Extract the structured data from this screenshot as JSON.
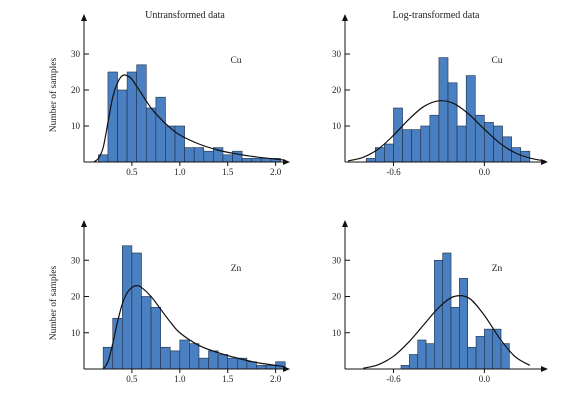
{
  "figure": {
    "column_titles": [
      "Untransformed data",
      "Log-transformed data"
    ],
    "ylabel": "Number of samples"
  },
  "chart_data": [
    {
      "id": "cu-raw",
      "type": "bar",
      "metal": "Cu",
      "xlim": [
        0.0,
        2.15
      ],
      "ylim": [
        0,
        40
      ],
      "xticks": [
        0.5,
        1.0,
        1.5,
        2.0
      ],
      "xtick_labels": [
        "0.5",
        "1.0",
        "1.5",
        "2.0"
      ],
      "yticks": [
        10,
        20,
        30
      ],
      "ytick_labels": [
        "10",
        "20",
        "30"
      ],
      "bin_start": 0.15,
      "bin_width": 0.1,
      "values": [
        2,
        25,
        20,
        25,
        27,
        15,
        18,
        10,
        10,
        4,
        4,
        3,
        4,
        2,
        3,
        1,
        1,
        1,
        1
      ],
      "curve_x": [
        0.1,
        0.15,
        0.2,
        0.25,
        0.3,
        0.35,
        0.4,
        0.45,
        0.5,
        0.55,
        0.6,
        0.7,
        0.8,
        0.9,
        1.0,
        1.2,
        1.4,
        1.6,
        1.8,
        2.0,
        2.1
      ],
      "curve_y": [
        0,
        1,
        4,
        11,
        18,
        22,
        24,
        24,
        23,
        21,
        19,
        15,
        12,
        9.5,
        7.5,
        5,
        3.3,
        2.2,
        1.4,
        0.8,
        0.5
      ]
    },
    {
      "id": "cu-log",
      "type": "bar",
      "metal": "Cu",
      "xlim": [
        -0.92,
        0.42
      ],
      "ylim": [
        0,
        40
      ],
      "xticks": [
        -0.6,
        0.0
      ],
      "xtick_labels": [
        "-0.6",
        "0.0"
      ],
      "yticks": [
        10,
        20,
        30
      ],
      "ytick_labels": [
        "10",
        "20",
        "30"
      ],
      "bin_start": -0.78,
      "bin_width": 0.06,
      "values": [
        1,
        4,
        5,
        15,
        9,
        9,
        10,
        13,
        29,
        22,
        10,
        24,
        13,
        11,
        10,
        7,
        4,
        3
      ],
      "curve_x": [
        -0.9,
        -0.8,
        -0.7,
        -0.6,
        -0.5,
        -0.4,
        -0.3,
        -0.2,
        -0.1,
        0.0,
        0.1,
        0.2,
        0.3,
        0.4
      ],
      "curve_y": [
        0.3,
        1.3,
        3.6,
        7.4,
        11.8,
        15.4,
        17.0,
        16.2,
        13.2,
        9.1,
        5.3,
        2.6,
        1.1,
        0.3
      ]
    },
    {
      "id": "zn-raw",
      "type": "bar",
      "metal": "Zn",
      "xlim": [
        0.0,
        2.15
      ],
      "ylim": [
        0,
        40
      ],
      "xticks": [
        0.5,
        1.0,
        1.5,
        2.0
      ],
      "xtick_labels": [
        "0.5",
        "1.0",
        "1.5",
        "2.0"
      ],
      "yticks": [
        10,
        20,
        30
      ],
      "ytick_labels": [
        "10",
        "20",
        "30"
      ],
      "bin_start": 0.2,
      "bin_width": 0.1,
      "values": [
        6,
        14,
        34,
        32,
        20,
        17,
        6,
        5,
        8,
        7,
        3,
        5,
        4,
        3,
        3,
        2,
        1,
        1,
        2
      ],
      "curve_x": [
        0.2,
        0.25,
        0.3,
        0.35,
        0.4,
        0.45,
        0.5,
        0.55,
        0.6,
        0.7,
        0.8,
        0.9,
        1.0,
        1.2,
        1.4,
        1.6,
        1.8,
        2.0,
        2.1
      ],
      "curve_y": [
        0,
        2,
        7,
        13,
        18,
        21,
        22.5,
        23,
        22.5,
        20,
        16.5,
        13,
        10,
        6.5,
        4.5,
        3,
        1.8,
        1,
        0.6
      ]
    },
    {
      "id": "zn-log",
      "type": "bar",
      "metal": "Zn",
      "xlim": [
        -0.92,
        0.42
      ],
      "ylim": [
        0,
        40
      ],
      "xticks": [
        -0.6,
        0.0
      ],
      "xtick_labels": [
        "-0.6",
        "0.0"
      ],
      "yticks": [
        10,
        20,
        30
      ],
      "ytick_labels": [
        "10",
        "20",
        "30"
      ],
      "bin_start": -0.55,
      "bin_width": 0.055,
      "values": [
        1,
        4,
        8,
        7,
        30,
        32,
        17,
        25,
        6,
        9,
        11,
        11,
        7
      ],
      "curve_x": [
        -0.8,
        -0.7,
        -0.6,
        -0.5,
        -0.4,
        -0.3,
        -0.2,
        -0.1,
        0.0,
        0.1,
        0.2,
        0.3
      ],
      "curve_y": [
        0.2,
        1.2,
        3.5,
        7.4,
        12.2,
        17.0,
        20.0,
        19.5,
        14.8,
        8.5,
        3.5,
        1.0
      ]
    }
  ]
}
